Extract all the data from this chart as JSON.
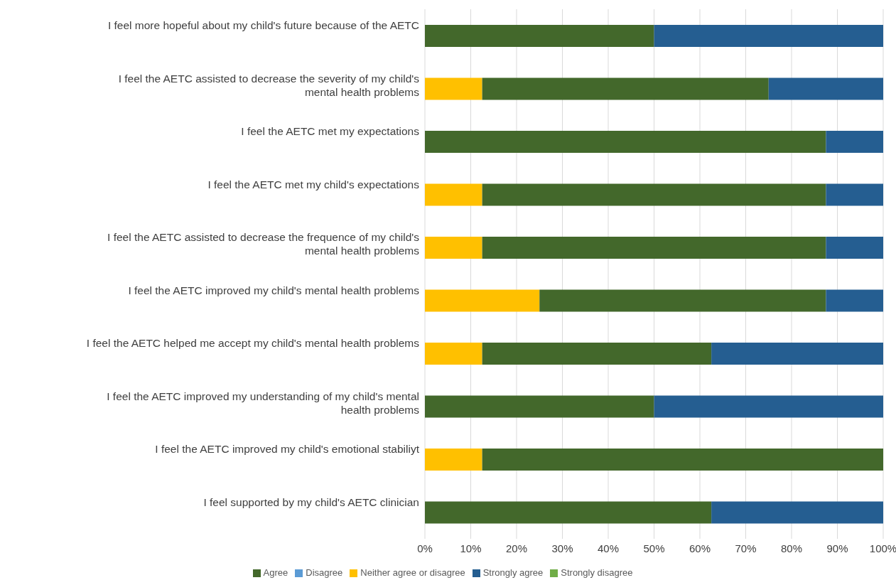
{
  "chart_data": {
    "type": "bar",
    "orientation": "horizontal",
    "stacked": true,
    "categories": [
      "I feel more hopeful about my child's future because of the AETC",
      "I feel the AETC assisted to decrease the severity of my child's mental health problems",
      "I feel the AETC met my expectations",
      "I feel the AETC met my child's expectations",
      "I feel the AETC assisted to decrease the frequence of my child's mental health problems",
      "I feel the AETC improved my child's mental health problems",
      "I feel the AETC helped me accept my child's mental health problems",
      "I feel the AETC improved my understanding of my child's mental health problems",
      "I feel the AETC improved my child's emotional stabiliyt",
      "I feel supported by my child's AETC clinician"
    ],
    "series": [
      {
        "name": "Strongly disagree",
        "color": "#70ad47",
        "values": [
          0,
          0,
          0,
          0,
          0,
          0,
          0,
          0,
          0,
          0
        ]
      },
      {
        "name": "Disagree",
        "color": "#5b9bd5",
        "values": [
          0,
          0,
          0,
          0,
          0,
          0,
          0,
          0,
          0,
          0
        ]
      },
      {
        "name": "Neither agree or disagree",
        "color": "#ffc000",
        "values": [
          0,
          12.5,
          0,
          12.5,
          12.5,
          25,
          12.5,
          0,
          12.5,
          0
        ]
      },
      {
        "name": "Agree",
        "color": "#43682b",
        "values": [
          50,
          62.5,
          87.5,
          75,
          75,
          62.5,
          50,
          50,
          87.5,
          62.5
        ]
      },
      {
        "name": "Strongly agree",
        "color": "#255e91",
        "values": [
          50,
          25,
          12.5,
          12.5,
          12.5,
          12.5,
          37.5,
          50,
          0,
          37.5
        ]
      }
    ],
    "xlim": [
      0,
      100
    ],
    "xticks": [
      {
        "value": 0,
        "label": "0%"
      },
      {
        "value": 10,
        "label": "10%"
      },
      {
        "value": 20,
        "label": "20%"
      },
      {
        "value": 30,
        "label": "30%"
      },
      {
        "value": 40,
        "label": "40%"
      },
      {
        "value": 50,
        "label": "50%"
      },
      {
        "value": 60,
        "label": "60%"
      },
      {
        "value": 70,
        "label": "70%"
      },
      {
        "value": 80,
        "label": "80%"
      },
      {
        "value": 90,
        "label": "90%"
      },
      {
        "value": 100,
        "label": "100%"
      }
    ],
    "grid": "x",
    "legend": "bottom"
  }
}
